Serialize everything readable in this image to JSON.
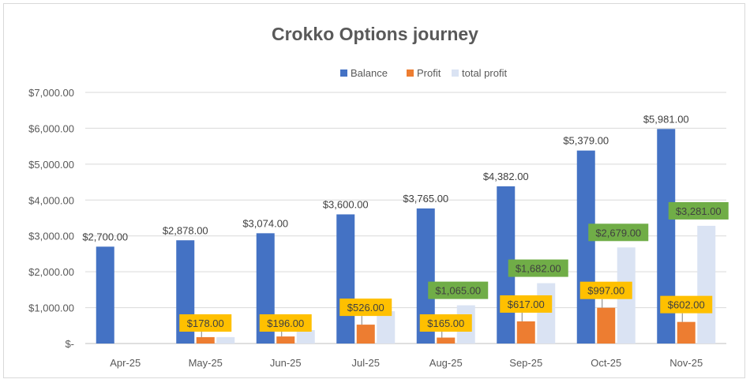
{
  "chart_data": {
    "type": "bar",
    "title": "Crokko Options journey",
    "xlabel": "",
    "ylabel": "",
    "ylim": [
      0,
      7000
    ],
    "grid": true,
    "legend_position": "top",
    "categories": [
      "Apr-25",
      "May-25",
      "Jun-25",
      "Jul-25",
      "Aug-25",
      "Sep-25",
      "Oct-25",
      "Nov-25"
    ],
    "y_ticks": [
      {
        "value": 0,
        "label": "$-"
      },
      {
        "value": 1000,
        "label": "$1,000.00"
      },
      {
        "value": 2000,
        "label": "$2,000.00"
      },
      {
        "value": 3000,
        "label": "$3,000.00"
      },
      {
        "value": 4000,
        "label": "$4,000.00"
      },
      {
        "value": 5000,
        "label": "$5,000.00"
      },
      {
        "value": 6000,
        "label": "$6,000.00"
      },
      {
        "value": 7000,
        "label": "$7,000.00"
      }
    ],
    "series": [
      {
        "name": "Balance",
        "color": "#4472c4",
        "values": [
          2700,
          2878,
          3074,
          3600,
          3765,
          4382,
          5379,
          5981
        ],
        "labels": [
          "$2,700.00",
          "$2,878.00",
          "$3,074.00",
          "$3,600.00",
          "$3,765.00",
          "$4,382.00",
          "$5,379.00",
          "$5,981.00"
        ]
      },
      {
        "name": "Profit",
        "color": "#ed7d31",
        "label_fill": "#ffc000",
        "values": [
          null,
          178,
          196,
          526,
          165,
          617,
          997,
          602
        ],
        "labels": [
          "",
          "$178.00",
          "$196.00",
          "$526.00",
          "$165.00",
          "$617.00",
          "$997.00",
          "$602.00"
        ]
      },
      {
        "name": "total profit",
        "color": "#dae3f3",
        "label_fill": "#70ad47",
        "values": [
          null,
          178,
          374,
          900,
          1065,
          1682,
          2679,
          3281
        ],
        "labels": [
          "",
          "",
          "",
          "",
          "$1,065.00",
          "$1,682.00",
          "$2,679.00",
          "$3,281.00"
        ]
      }
    ]
  }
}
